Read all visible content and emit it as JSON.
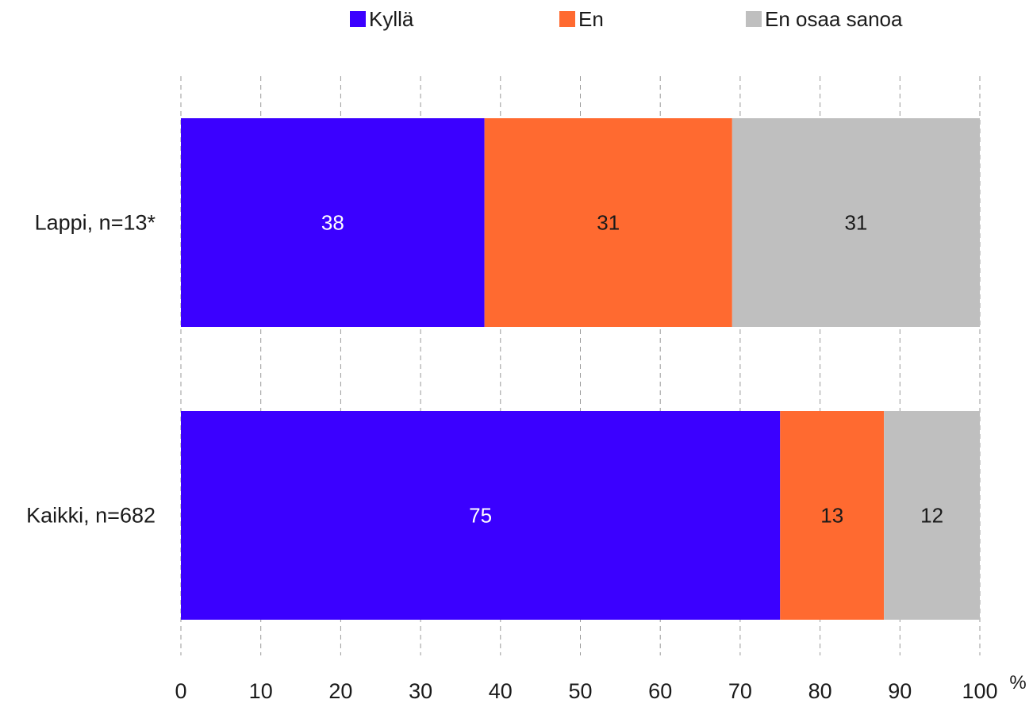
{
  "chart_data": {
    "type": "bar",
    "orientation": "horizontal",
    "stacked": true,
    "categories": [
      "Lappi, n=13*",
      "Kaikki, n=682"
    ],
    "series": [
      {
        "name": "Kyllä",
        "color": "#3b00ff",
        "label_color": "#ffffff",
        "values": [
          38,
          75
        ]
      },
      {
        "name": "En",
        "color": "#ff6a30",
        "label_color": "#1a1a1a",
        "values": [
          31,
          13
        ]
      },
      {
        "name": "En osaa sanoa",
        "color": "#bfbfbf",
        "label_color": "#1a1a1a",
        "values": [
          31,
          12
        ]
      }
    ],
    "xlim": [
      0,
      100
    ],
    "xticks": [
      0,
      10,
      20,
      30,
      40,
      50,
      60,
      70,
      80,
      90,
      100
    ],
    "xunit": "%",
    "grid": "vertical dashed",
    "legend": "top"
  }
}
